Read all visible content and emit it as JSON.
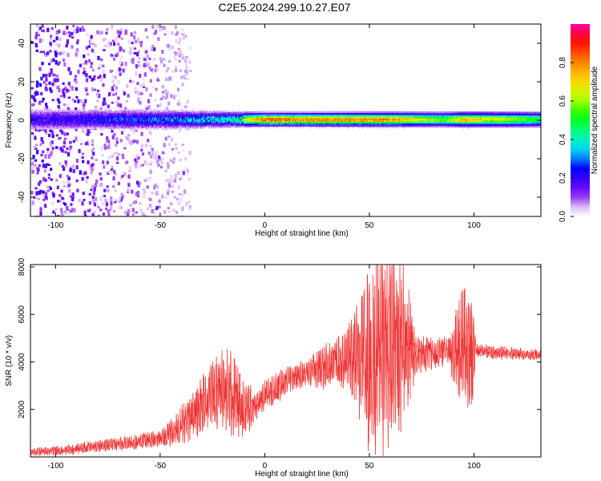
{
  "figure": {
    "title": "C2E5.2024.299.10.27.E07"
  },
  "chart_data": [
    {
      "type": "heatmap",
      "xlabel": "Height of straight line (km)",
      "ylabel": "Frequency (Hz)",
      "xlim": [
        -112,
        132
      ],
      "ylim": [
        -50,
        50
      ],
      "x_ticks": [
        -100,
        -50,
        0,
        50,
        100
      ],
      "y_ticks": [
        -40,
        -20,
        0,
        20,
        40
      ],
      "colorbar": {
        "label": "Normalized spectral amplitude",
        "range": [
          0.0,
          1.0
        ],
        "ticks": [
          0.0,
          0.2,
          0.4,
          0.6,
          0.8
        ],
        "colormap": [
          "#ffffff",
          "#e6d5fb",
          "#8a2be2",
          "#5500ff",
          "#0000ff",
          "#00c8ff",
          "#00ffb0",
          "#00ff00",
          "#c8ff00",
          "#ffcc00",
          "#ff6600",
          "#ff0000",
          "#ff00aa"
        ]
      },
      "band_center_hz": 0,
      "band_halfwidth_hz": [
        {
          "x": -110,
          "halfwidth": 6
        },
        {
          "x": -40,
          "halfwidth": 5
        },
        {
          "x": 0,
          "halfwidth": 3.5
        },
        {
          "x": 130,
          "halfwidth": 4
        }
      ],
      "band_peak_amplitude": [
        {
          "x": -110,
          "amplitude": 0.25
        },
        {
          "x": -40,
          "amplitude": 0.4
        },
        {
          "x": -15,
          "amplitude": 0.55
        },
        {
          "x": 0,
          "amplitude": 0.9
        },
        {
          "x": 20,
          "amplitude": 0.85
        },
        {
          "x": 60,
          "amplitude": 0.85
        },
        {
          "x": 85,
          "amplitude": 0.6
        },
        {
          "x": 95,
          "amplitude": 0.8
        },
        {
          "x": 132,
          "amplitude": 0.55
        }
      ],
      "noise_region_x": [
        -112,
        -40
      ]
    },
    {
      "type": "line",
      "xlabel": "Height of straight line (km)",
      "ylabel": "SNR (10 * v/v)",
      "xlim": [
        -112,
        132
      ],
      "ylim": [
        0,
        8100
      ],
      "x_ticks": [
        -100,
        -50,
        0,
        50,
        100
      ],
      "y_ticks": [
        2000,
        4000,
        6000,
        8000
      ],
      "series": [
        {
          "color": "#ee3333",
          "points": [
            {
              "x": -112,
              "y": 200
            },
            {
              "x": -100,
              "y": 250
            },
            {
              "x": -90,
              "y": 350
            },
            {
              "x": -80,
              "y": 450
            },
            {
              "x": -70,
              "y": 550
            },
            {
              "x": -60,
              "y": 650
            },
            {
              "x": -50,
              "y": 800
            },
            {
              "x": -45,
              "y": 1000
            },
            {
              "x": -40,
              "y": 1300
            },
            {
              "x": -35,
              "y": 1700
            },
            {
              "x": -30,
              "y": 2200
            },
            {
              "x": -25,
              "y": 2600
            },
            {
              "x": -20,
              "y": 2800
            },
            {
              "x": -15,
              "y": 2300
            },
            {
              "x": -10,
              "y": 2100
            },
            {
              "x": -5,
              "y": 2200
            },
            {
              "x": 0,
              "y": 2600
            },
            {
              "x": 5,
              "y": 2900
            },
            {
              "x": 10,
              "y": 3200
            },
            {
              "x": 15,
              "y": 3400
            },
            {
              "x": 20,
              "y": 3500
            },
            {
              "x": 25,
              "y": 3700
            },
            {
              "x": 30,
              "y": 3850
            },
            {
              "x": 35,
              "y": 3950
            },
            {
              "x": 40,
              "y": 4100
            },
            {
              "x": 45,
              "y": 4150
            },
            {
              "x": 50,
              "y": 4200
            },
            {
              "x": 55,
              "y": 4250
            },
            {
              "x": 60,
              "y": 4300
            },
            {
              "x": 65,
              "y": 4300
            },
            {
              "x": 70,
              "y": 4300
            },
            {
              "x": 75,
              "y": 4350
            },
            {
              "x": 80,
              "y": 4400
            },
            {
              "x": 85,
              "y": 4450
            },
            {
              "x": 90,
              "y": 4450
            },
            {
              "x": 95,
              "y": 4400
            },
            {
              "x": 100,
              "y": 4500
            },
            {
              "x": 110,
              "y": 4400
            },
            {
              "x": 120,
              "y": 4350
            },
            {
              "x": 132,
              "y": 4300
            }
          ],
          "oscillation_amplitude": [
            {
              "x": -112,
              "amp": 150
            },
            {
              "x": -50,
              "amp": 300
            },
            {
              "x": -40,
              "amp": 700
            },
            {
              "x": -25,
              "amp": 1200
            },
            {
              "x": -15,
              "amp": 1800
            },
            {
              "x": -5,
              "amp": 600
            },
            {
              "x": 20,
              "amp": 500
            },
            {
              "x": 40,
              "amp": 1200
            },
            {
              "x": 48,
              "amp": 3000
            },
            {
              "x": 55,
              "amp": 3800
            },
            {
              "x": 62,
              "amp": 3600
            },
            {
              "x": 68,
              "amp": 3000
            },
            {
              "x": 72,
              "amp": 700
            },
            {
              "x": 88,
              "amp": 500
            },
            {
              "x": 95,
              "amp": 2600
            },
            {
              "x": 99,
              "amp": 2600
            },
            {
              "x": 101,
              "amp": 250
            },
            {
              "x": 132,
              "amp": 200
            }
          ]
        }
      ]
    }
  ]
}
